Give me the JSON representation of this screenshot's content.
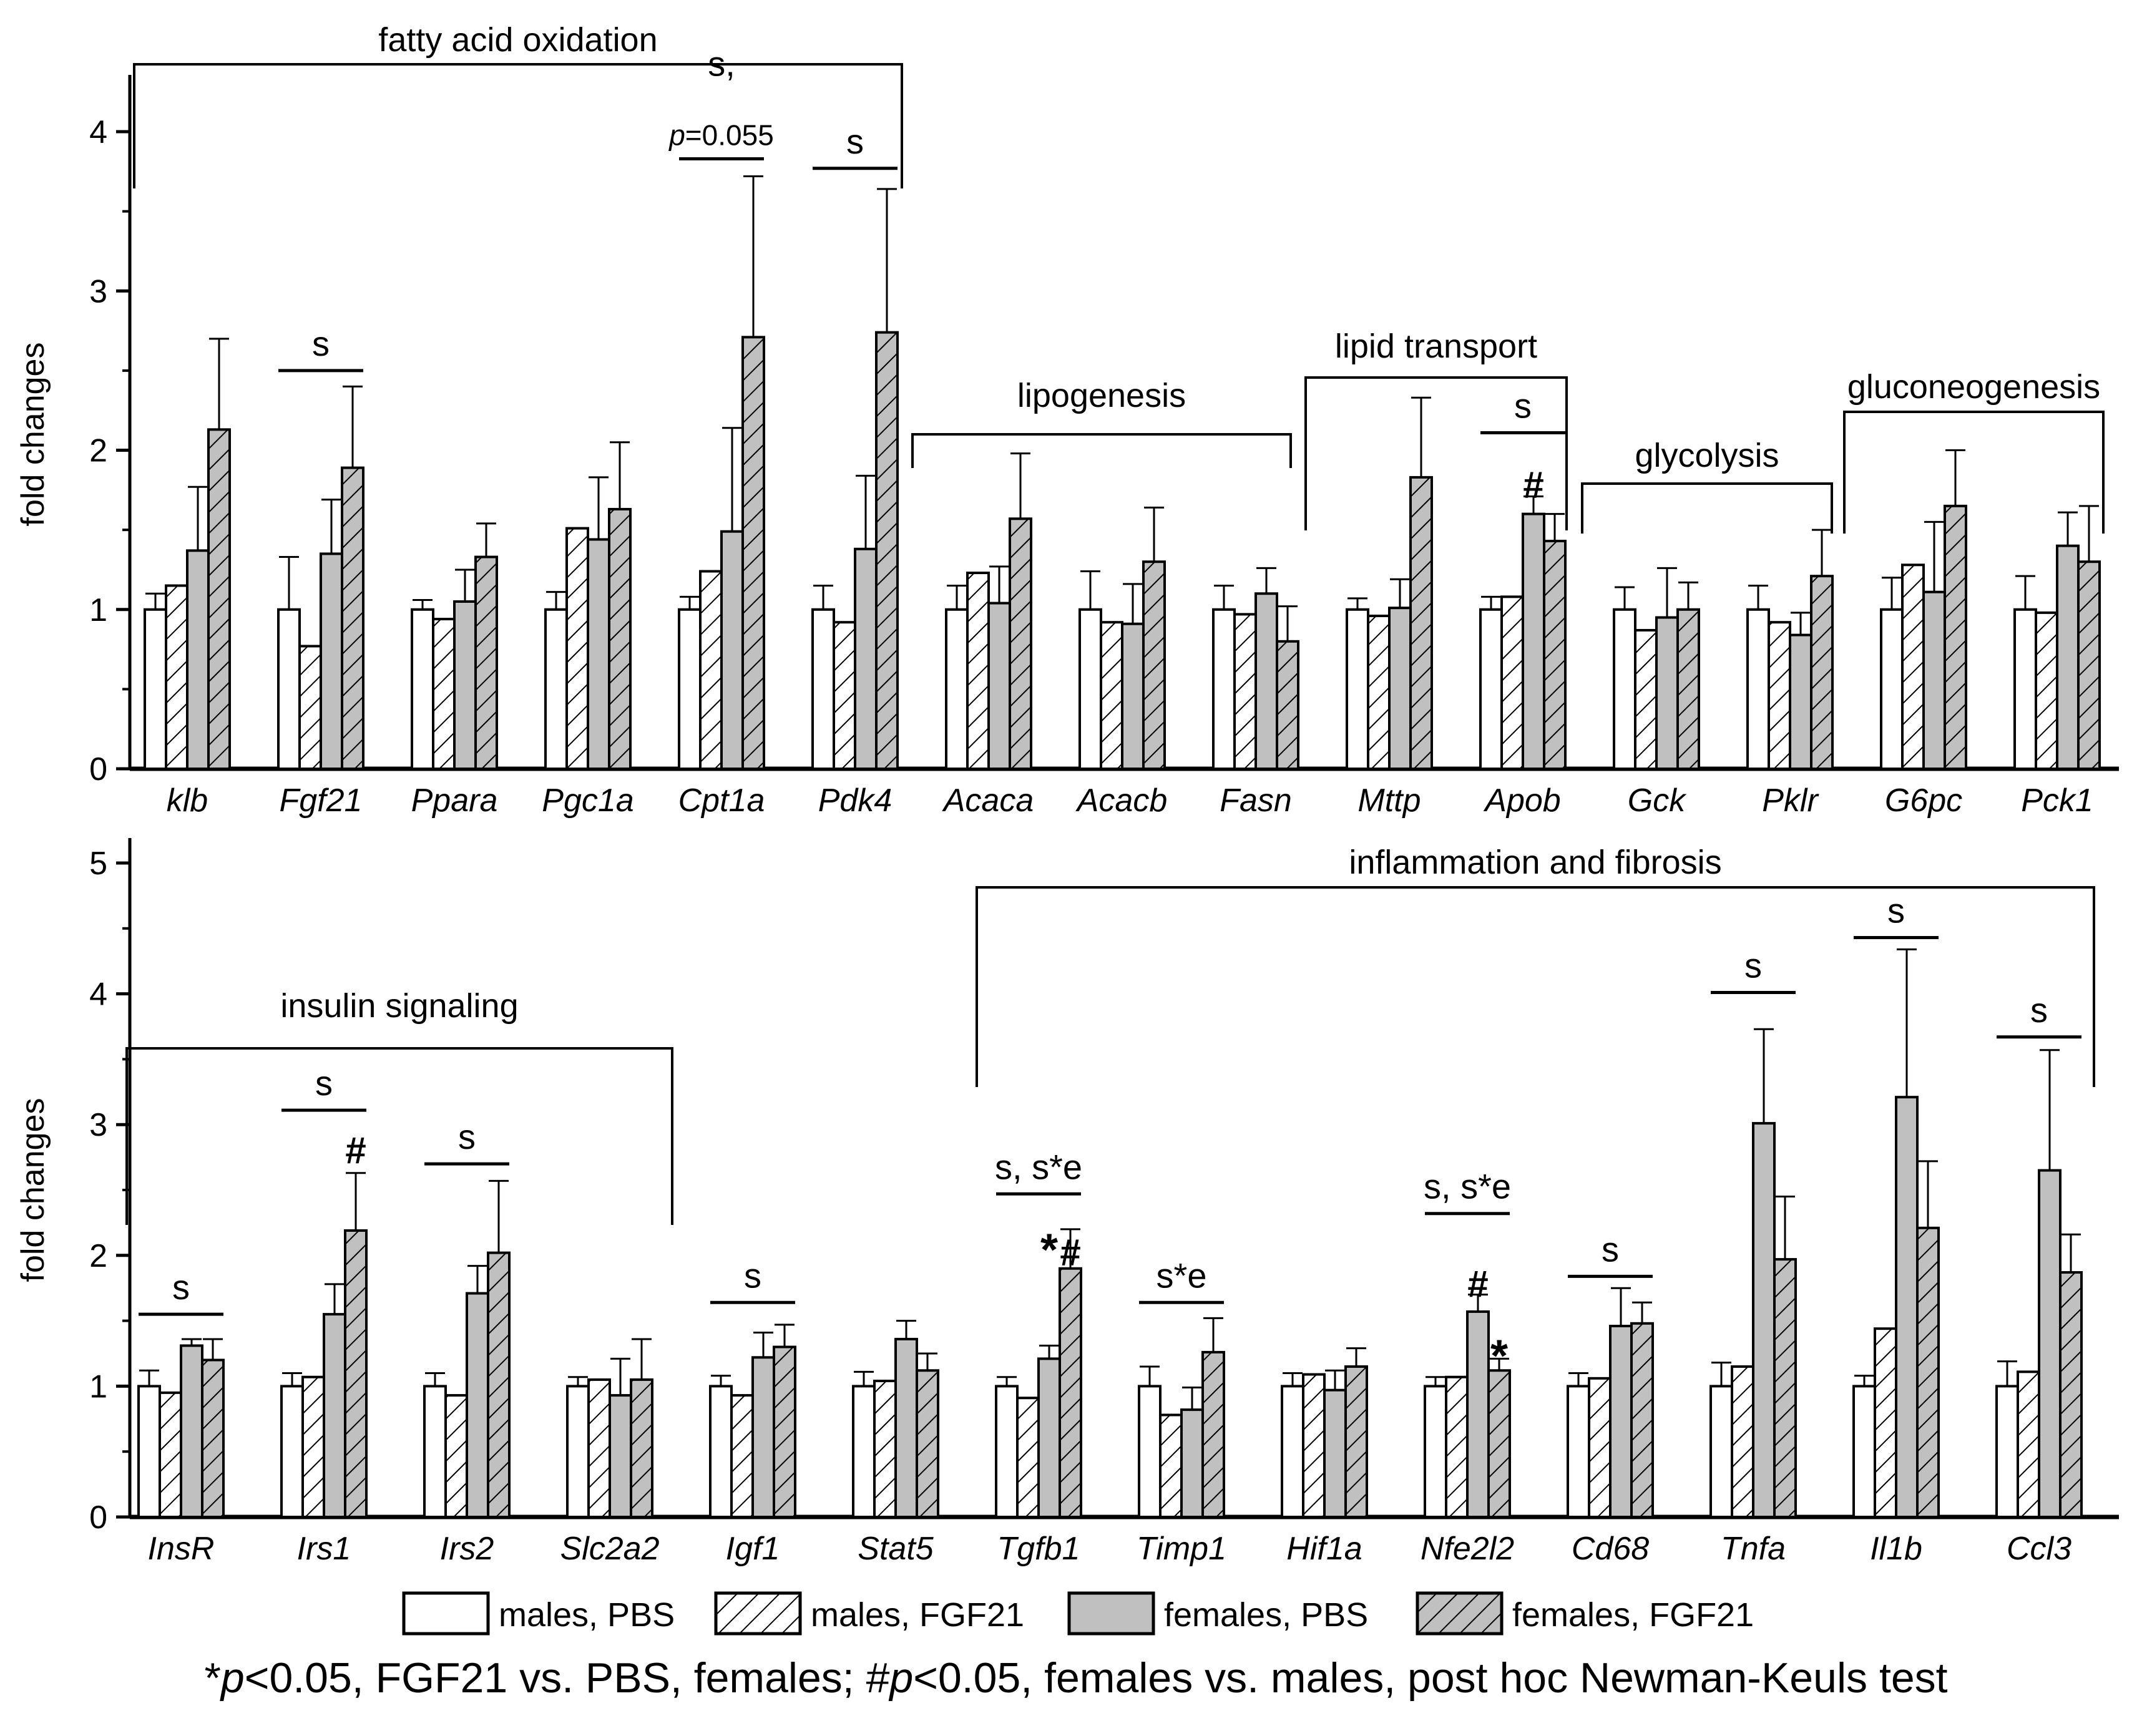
{
  "chart_data": [
    {
      "type": "bar",
      "ylabel": "fold changes",
      "ylim": [
        0,
        4.2
      ],
      "yticks": [
        0,
        1,
        2,
        3,
        4
      ],
      "series_names": [
        "males, PBS",
        "males, FGF21",
        "females, PBS",
        "females, FGF21"
      ],
      "categories": [
        "klb",
        "Fgf21",
        "Ppara",
        "Pgc1a",
        "Cpt1a",
        "Pdk4",
        "Acaca",
        "Acacb",
        "Fasn",
        "Mttp",
        "Apob",
        "Gck",
        "Pklr",
        "G6pc",
        "Pck1"
      ],
      "series": [
        {
          "name": "males, PBS",
          "values": [
            1.0,
            1.0,
            1.0,
            1.0,
            1.0,
            1.0,
            1.0,
            1.0,
            1.0,
            1.0,
            1.0,
            1.0,
            1.0,
            1.0,
            1.0
          ],
          "errors": [
            0.1,
            0.33,
            0.06,
            0.11,
            0.08,
            0.15,
            0.15,
            0.24,
            0.15,
            0.07,
            0.08,
            0.14,
            0.15,
            0.2,
            0.21
          ]
        },
        {
          "name": "males, FGF21",
          "values": [
            1.15,
            0.77,
            0.94,
            1.51,
            1.24,
            0.92,
            1.23,
            0.92,
            0.97,
            0.96,
            1.08,
            0.87,
            0.92,
            1.28,
            0.98
          ]
        },
        {
          "name": "females, PBS",
          "values": [
            1.37,
            1.35,
            1.05,
            1.44,
            1.49,
            1.38,
            1.04,
            0.91,
            1.1,
            1.01,
            1.6,
            0.95,
            0.84,
            1.11,
            1.4
          ],
          "errors": [
            0.4,
            0.34,
            0.2,
            0.39,
            0.65,
            0.46,
            0.23,
            0.25,
            0.16,
            0.18,
            0.11,
            0.31,
            0.14,
            0.44,
            0.21
          ]
        },
        {
          "name": "females, FGF21",
          "values": [
            2.13,
            1.89,
            1.33,
            1.63,
            2.71,
            2.74,
            1.57,
            1.3,
            0.8,
            1.83,
            1.43,
            1.0,
            1.21,
            1.65,
            1.3
          ],
          "errors": [
            0.57,
            0.51,
            0.21,
            0.42,
            1.01,
            0.9,
            0.41,
            0.34,
            0.22,
            0.5,
            0.17,
            0.17,
            0.29,
            0.35,
            0.35
          ]
        }
      ],
      "annotations": [
        {
          "text": "s",
          "category": "Fgf21",
          "y": 2.5
        },
        {
          "text": "s,",
          "category": "Cpt1a",
          "y": 4.35
        },
        {
          "text": "p=0.055",
          "category": "Cpt1a",
          "y": 3.83
        },
        {
          "text": "s",
          "category": "Pdk4",
          "y": 3.77
        },
        {
          "text": "s",
          "category": "Apob",
          "y": 2.11
        },
        {
          "text": "#",
          "category": "Apob",
          "series": "females, PBS",
          "y": 1.78
        }
      ],
      "group_labels": [
        {
          "text": "fatty acid oxidation",
          "from": "klb",
          "to": "Pdk4"
        },
        {
          "text": "lipogenesis",
          "from": "Acaca",
          "to": "Fasn"
        },
        {
          "text": "lipid transport",
          "from": "Mttp",
          "to": "Apob"
        },
        {
          "text": "glycolysis",
          "from": "Gck",
          "to": "Pklr"
        },
        {
          "text": "gluconeogenesis",
          "from": "G6pc",
          "to": "Pck1"
        }
      ]
    },
    {
      "type": "bar",
      "ylabel": "fold changes",
      "ylim": [
        0,
        5
      ],
      "yticks": [
        0,
        1,
        2,
        3,
        4,
        5
      ],
      "series_names": [
        "males, PBS",
        "males, FGF21",
        "females, PBS",
        "females, FGF21"
      ],
      "categories": [
        "InsR",
        "Irs1",
        "Irs2",
        "Slc2a2",
        "Igf1",
        "Stat5",
        "Tgfb1",
        "Timp1",
        "Hif1a",
        "Nfe2l2",
        "Cd68",
        "Tnfa",
        "Il1b",
        "Ccl3"
      ],
      "series": [
        {
          "name": "males, PBS",
          "values": [
            1.0,
            1.0,
            1.0,
            1.0,
            1.0,
            1.0,
            1.0,
            1.0,
            1.0,
            1.0,
            1.0,
            1.0,
            1.0,
            1.0
          ],
          "errors": [
            0.12,
            0.1,
            0.1,
            0.07,
            0.08,
            0.11,
            0.07,
            0.15,
            0.1,
            0.07,
            0.1,
            0.18,
            0.08,
            0.19
          ]
        },
        {
          "name": "males, FGF21",
          "values": [
            0.95,
            1.07,
            0.93,
            1.05,
            0.93,
            1.04,
            0.91,
            0.78,
            1.09,
            1.07,
            1.06,
            1.15,
            1.44,
            1.11
          ]
        },
        {
          "name": "females, PBS",
          "values": [
            1.31,
            1.55,
            1.71,
            0.93,
            1.22,
            1.36,
            1.21,
            0.82,
            0.97,
            1.57,
            1.46,
            3.01,
            3.21,
            2.65
          ],
          "errors": [
            0.05,
            0.23,
            0.21,
            0.28,
            0.19,
            0.14,
            0.1,
            0.17,
            0.15,
            0.13,
            0.29,
            0.72,
            1.13,
            0.92
          ]
        },
        {
          "name": "females, FGF21",
          "values": [
            1.2,
            2.19,
            2.02,
            1.05,
            1.3,
            1.12,
            1.9,
            1.26,
            1.15,
            1.12,
            1.48,
            1.97,
            2.21,
            1.87
          ],
          "errors": [
            0.16,
            0.44,
            0.55,
            0.31,
            0.17,
            0.13,
            0.3,
            0.26,
            0.14,
            0.09,
            0.16,
            0.48,
            0.51,
            0.29
          ]
        }
      ],
      "annotations": [
        {
          "text": "s",
          "category": "InsR",
          "y": 1.55
        },
        {
          "text": "s",
          "category": "Irs1",
          "y": 3.11
        },
        {
          "text": "#",
          "category": "Irs1",
          "series": "females, FGF21",
          "y": 2.8
        },
        {
          "text": "s",
          "category": "Irs2",
          "y": 2.7
        },
        {
          "text": "s",
          "category": "Igf1",
          "y": 1.64
        },
        {
          "text": "s, s*e",
          "category": "Tgfb1",
          "y": 2.47
        },
        {
          "text": "*",
          "category": "Tgfb1",
          "series": "females, PBS",
          "y": 2.02
        },
        {
          "text": "#",
          "category": "Tgfb1",
          "series": "females, FGF21",
          "y": 2.02
        },
        {
          "text": "s*e",
          "category": "Timp1",
          "y": 1.64
        },
        {
          "text": "s, s*e",
          "category": "Nfe2l2",
          "y": 2.32
        },
        {
          "text": "#",
          "category": "Nfe2l2",
          "series": "females, PBS",
          "y": 1.78
        },
        {
          "text": "*",
          "category": "Nfe2l2",
          "series": "females, FGF21",
          "y": 1.21
        },
        {
          "text": "s",
          "category": "Cd68",
          "y": 1.84
        },
        {
          "text": "s",
          "category": "Tnfa",
          "y": 4.01
        },
        {
          "text": "s",
          "category": "Il1b",
          "y": 4.43
        },
        {
          "text": "s",
          "category": "Ccl3",
          "y": 3.67
        }
      ],
      "group_labels": [
        {
          "text": "insulin signaling",
          "from": "InsR",
          "to": "Slc2a2"
        },
        {
          "text": "inflammation and fibrosis",
          "from": "Tgfb1",
          "to": "Ccl3"
        }
      ]
    }
  ],
  "legend": {
    "items": [
      "males, PBS",
      "males, FGF21",
      "females, PBS",
      "females, FGF21"
    ]
  },
  "footnote": {
    "star": "*",
    "p1": "p",
    "part1": "<0.05, FGF21 vs. PBS, females; #",
    "p2": "p",
    "part2": "<0.05, females vs. males, post hoc Newman-Keuls test"
  },
  "colors": {
    "ink": "#000000",
    "female_fill": "#c0c0c0",
    "male_fill": "#ffffff"
  }
}
